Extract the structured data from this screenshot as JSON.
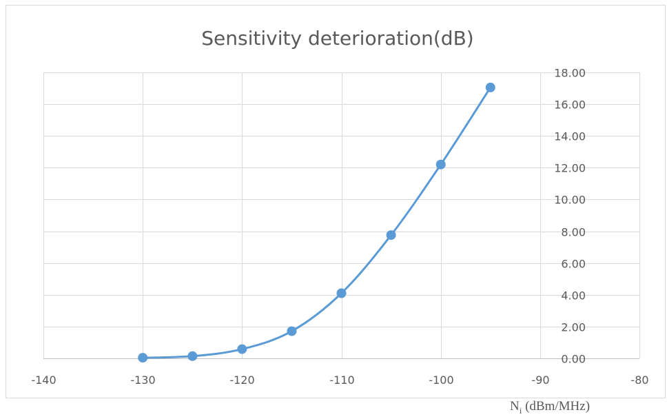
{
  "chart_data": {
    "type": "line",
    "title": "Sensitivity deterioration(dB)",
    "xlabel": {
      "main": "N",
      "sub": "i",
      "rest": " (dBm/MHz)"
    },
    "ylabel": "",
    "xlim": [
      -140,
      -80
    ],
    "ylim": [
      0,
      18
    ],
    "xticks": [
      -140,
      -130,
      -120,
      -110,
      -100,
      -90,
      -80
    ],
    "xtick_labels": [
      "-140",
      "-130",
      "-120",
      "-110",
      "-100",
      "-90",
      "-80"
    ],
    "yticks": [
      0,
      2,
      4,
      6,
      8,
      10,
      12,
      14,
      16,
      18
    ],
    "ytick_labels": [
      "0.00",
      "2.00",
      "4.00",
      "6.00",
      "8.00",
      "10.00",
      "12.00",
      "14.00",
      "16.00",
      "18.00"
    ],
    "y_axis_position": "right",
    "grid": true,
    "smooth": true,
    "series": [
      {
        "color": "#5b9bd5",
        "x": [
          -130,
          -125,
          -120,
          -115,
          -110,
          -105,
          -100,
          -95
        ],
        "y": [
          0.04,
          0.14,
          0.58,
          1.71,
          4.1,
          7.76,
          12.2,
          17.05
        ]
      }
    ]
  }
}
